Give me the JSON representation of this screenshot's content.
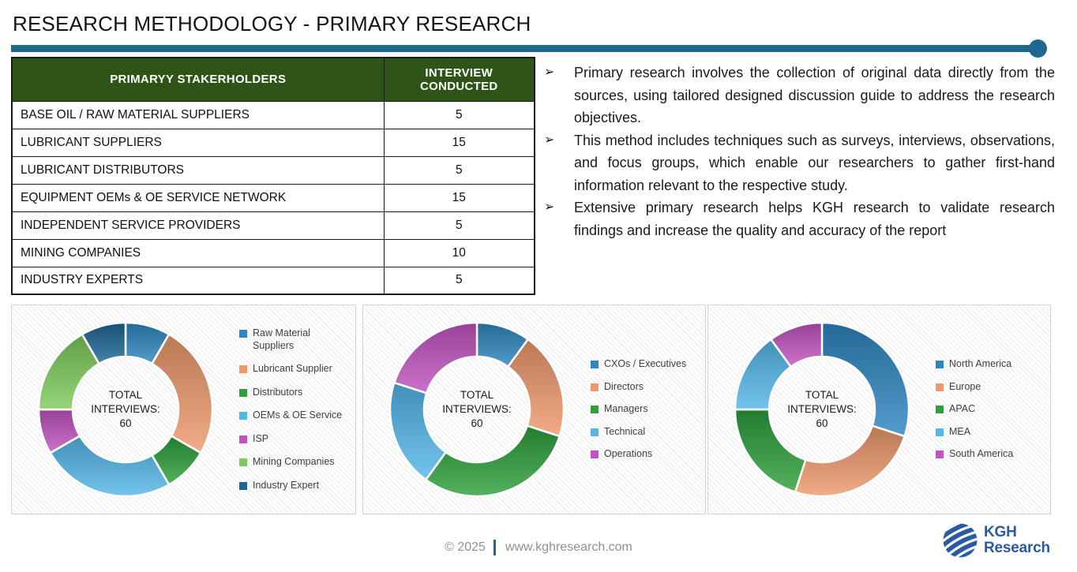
{
  "title": "RESEARCH METHODOLOGY - PRIMARY RESEARCH",
  "accent": {
    "rule_color": "#1E688E",
    "table_header_green": "#2F5418",
    "logo_blue": "#2B5AA5"
  },
  "table": {
    "headers": [
      "PRIMARYY STAKERHOLDERS",
      "INTERVIEW CONDUCTED"
    ],
    "rows": [
      {
        "stakeholder": "BASE OIL / RAW MATERIAL SUPPLIERS",
        "interviews": "5"
      },
      {
        "stakeholder": "LUBRICANT SUPPLIERS",
        "interviews": "15"
      },
      {
        "stakeholder": "LUBRICANT DISTRIBUTORS",
        "interviews": "5"
      },
      {
        "stakeholder": "EQUIPMENT OEMs & OE SERVICE NETWORK",
        "interviews": "15"
      },
      {
        "stakeholder": "INDEPENDENT SERVICE PROVIDERS",
        "interviews": "5"
      },
      {
        "stakeholder": "MINING COMPANIES",
        "interviews": "10"
      },
      {
        "stakeholder": "INDUSTRY EXPERTS",
        "interviews": "5"
      }
    ]
  },
  "bullet_glyph": "➢",
  "bullets": [
    "Primary research involves the collection of original data directly from the sources, using tailored designed discussion guide to address the research objectives.",
    "This method includes techniques such as surveys, interviews, observations, and focus groups, which enable our researchers to gather first-hand information relevant to the respective study.",
    "Extensive primary research helps KGH research to validate research findings and increase the quality and accuracy of the report"
  ],
  "chart_data": [
    {
      "type": "pie",
      "subtype": "donut",
      "title": "Interviews by stakeholder",
      "center_lines": [
        "TOTAL",
        "INTERVIEWS:",
        "60"
      ],
      "total": 60,
      "legend_position": "right",
      "categories": [
        "Raw Material Suppliers",
        "Lubricant Supplier",
        "Distributors",
        "OEMs & OE Service",
        "ISP",
        "Mining Companies",
        "Industry Expert"
      ],
      "values": [
        5,
        15,
        5,
        15,
        5,
        10,
        5
      ],
      "colors": [
        "#2E86C1",
        "#EF9A6D",
        "#2DA03C",
        "#54B7EA",
        "#C253C1",
        "#7ECB5B",
        "#1E6795"
      ]
    },
    {
      "type": "pie",
      "subtype": "donut",
      "title": "Interviews by designation",
      "center_lines": [
        "TOTAL",
        "INTERVIEWS:",
        "60"
      ],
      "total": 60,
      "legend_position": "right",
      "categories": [
        "CXOs / Executives",
        "Directors",
        "Managers",
        "Technical",
        "Operations"
      ],
      "values": [
        6,
        12,
        18,
        12,
        12
      ],
      "colors": [
        "#2E86C1",
        "#EF9A6D",
        "#2DA03C",
        "#54B7EA",
        "#C253C1"
      ]
    },
    {
      "type": "pie",
      "subtype": "donut",
      "title": "Interviews by region",
      "center_lines": [
        "TOTAL",
        "INTERVIEWS:",
        "60"
      ],
      "total": 60,
      "legend_position": "right",
      "categories": [
        "North America",
        "Europe",
        "APAC",
        "MEA",
        "South America"
      ],
      "values": [
        18,
        15,
        12,
        9,
        6
      ],
      "colors": [
        "#2E86C1",
        "#EF9A6D",
        "#2DA03C",
        "#54B7EA",
        "#C253C1"
      ]
    }
  ],
  "footer": {
    "copyright": "© 2025",
    "website": "www.kghresearch.com"
  },
  "logo": {
    "name1": "KGH",
    "name2": "Research"
  }
}
